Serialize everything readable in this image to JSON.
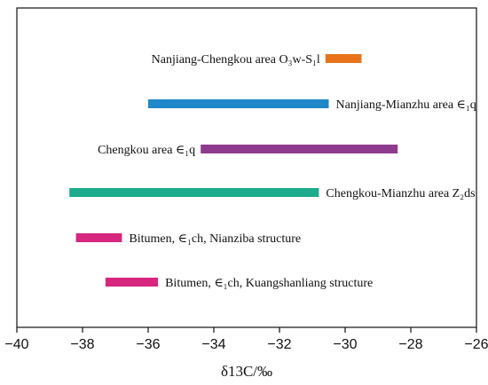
{
  "chart_data": {
    "type": "range_bar",
    "xlabel": "δ13C/‰",
    "xlim": [
      -40,
      -26
    ],
    "xticks": [
      -40,
      -38,
      -36,
      -34,
      -32,
      -30,
      -28,
      -26
    ],
    "xtick_labels": [
      "−40",
      "−38",
      "−36",
      "−34",
      "−32",
      "−30",
      "−28",
      "−26"
    ],
    "grid": false,
    "bars": [
      {
        "label": "Nanjiang-Chengkou area O₃w-S₁l",
        "start": -30.6,
        "end": -29.5,
        "color": "#E8731A",
        "label_side": "left"
      },
      {
        "label": "Nanjiang-Mianzhu area ∈₁q",
        "start": -36.0,
        "end": -30.5,
        "color": "#1F88C9",
        "label_side": "right"
      },
      {
        "label": "Chengkou area ∈₁q",
        "start": -34.4,
        "end": -28.4,
        "color": "#8E3A8E",
        "label_side": "left"
      },
      {
        "label": "Chengkou-Mianzhu area Z₂ds",
        "start": -38.4,
        "end": -30.8,
        "color": "#1EAA8C",
        "label_side": "right"
      },
      {
        "label": "Bitumen, ∈₁ch, Nianziba structure",
        "start": -38.2,
        "end": -36.8,
        "color": "#D6267E",
        "label_side": "right"
      },
      {
        "label": "Bitumen, ∈₁ch, Kuangshanliang structure",
        "start": -37.3,
        "end": -35.7,
        "color": "#D6267E",
        "label_side": "right"
      }
    ]
  }
}
